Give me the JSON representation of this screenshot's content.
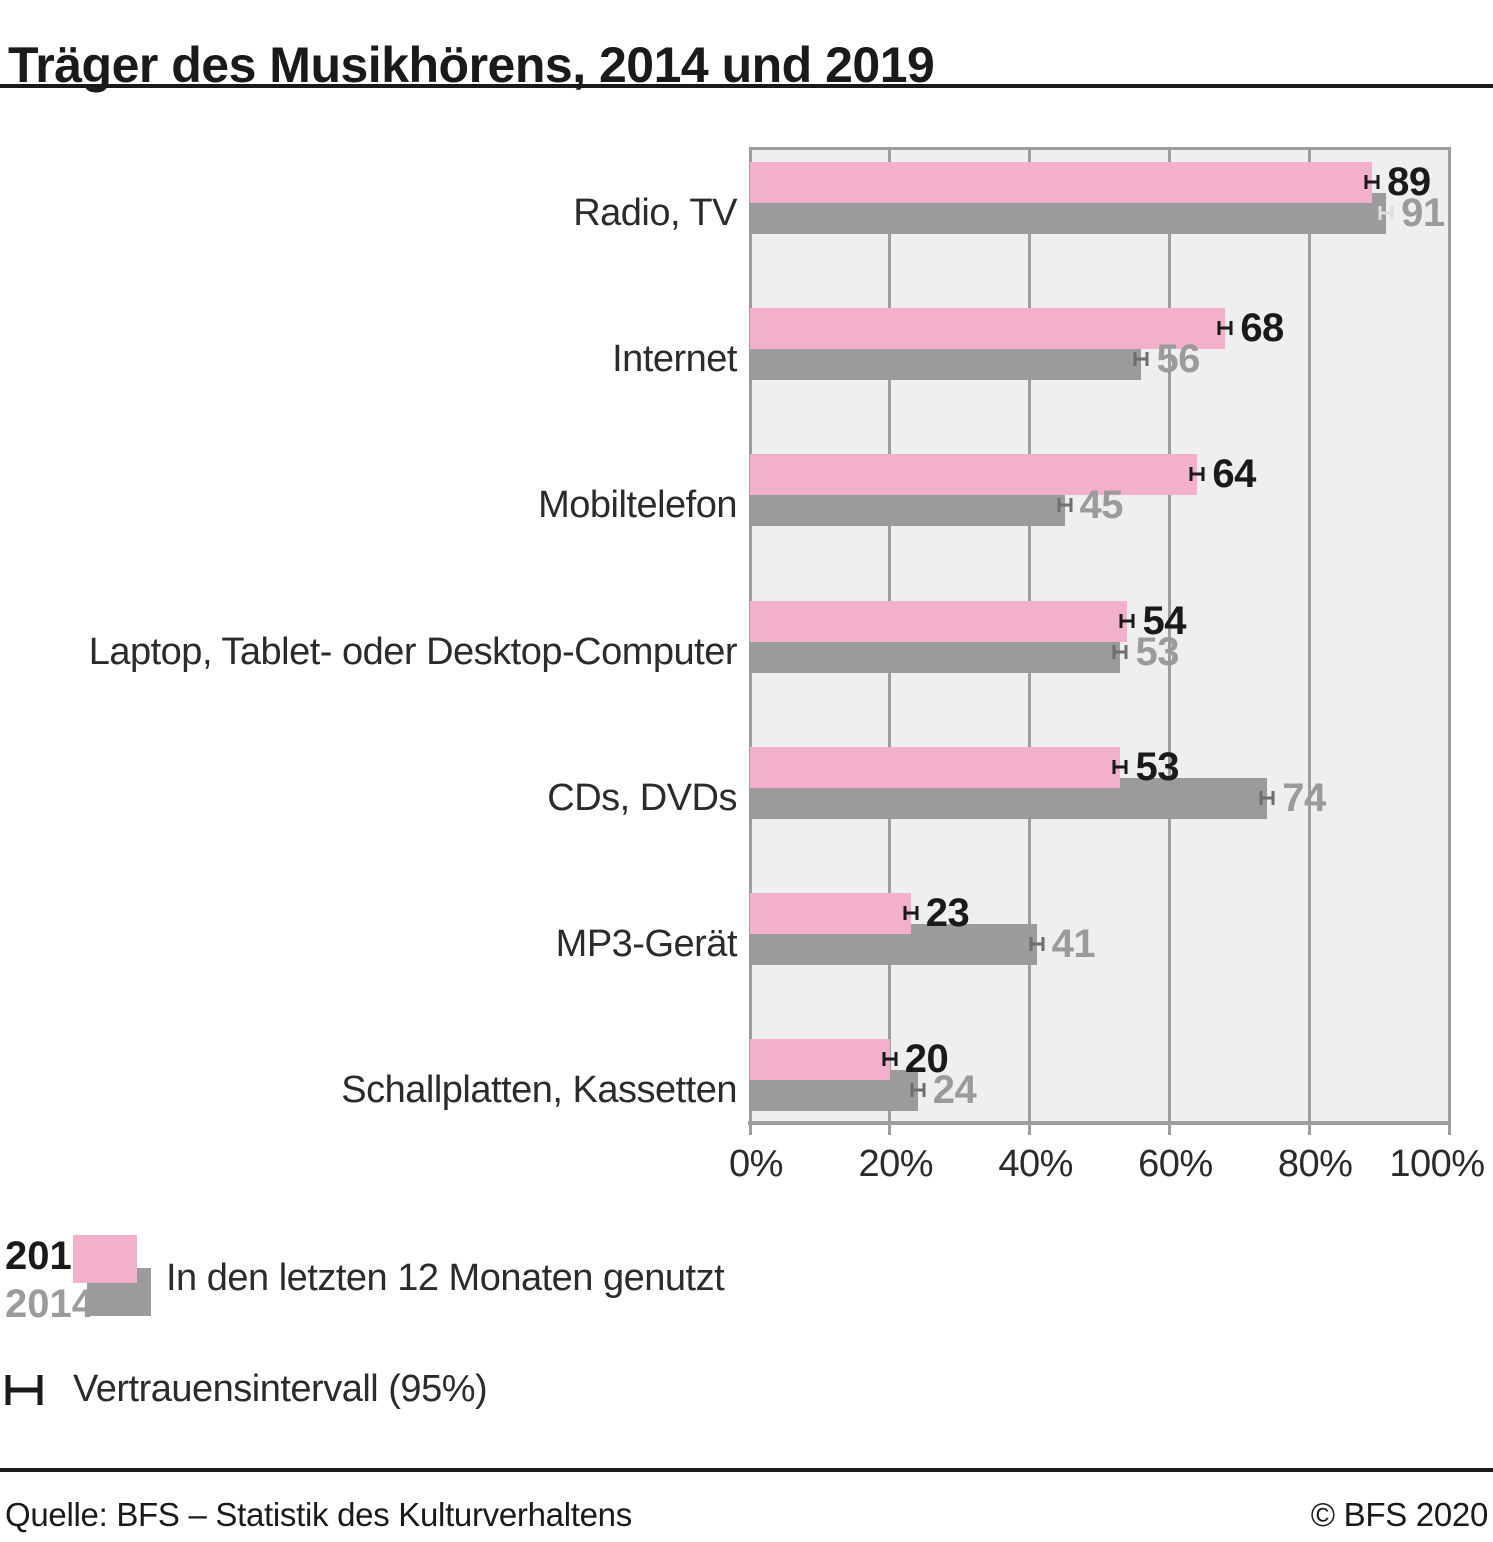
{
  "title": "Träger des Musikhörens, 2014 und 2019",
  "chart_data": {
    "type": "bar",
    "orientation": "horizontal",
    "title": "Träger des Musikhörens, 2014 und 2019",
    "categories": [
      "Radio, TV",
      "Internet",
      "Mobiltelefon",
      "Laptop, Tablet- oder Desktop-Computer",
      "CDs, DVDs",
      "MP3-Gerät",
      "Schallplatten, Kassetten"
    ],
    "series": [
      {
        "name": "2019",
        "values": [
          89,
          68,
          64,
          54,
          53,
          23,
          20
        ],
        "color": "#F2B0CC",
        "value_label_color": "#1A1A1A",
        "ci_marker_color": "#1A1A1A"
      },
      {
        "name": "2014",
        "values": [
          91,
          56,
          45,
          53,
          74,
          41,
          24
        ],
        "color": "#9B9B9B",
        "value_label_color": "#9B9B9B",
        "ci_marker_color": "#6E6E6E",
        "ci_marker_color_overrides": {
          "0": "#DEDEDE"
        }
      }
    ],
    "x_ticks": [
      0,
      20,
      40,
      60,
      80,
      100
    ],
    "x_tick_labels": [
      "0%",
      "20%",
      "40%",
      "60%",
      "80%",
      "100%"
    ],
    "xlim": [
      0,
      100
    ],
    "grid": true,
    "error_bars": "Vertrauensintervall (95%)",
    "legend_position": "bottom-left"
  },
  "legend": {
    "year2019": "2019",
    "year2014": "2014",
    "usage_label": "In den letzten 12 Monaten genutzt",
    "ci_label": "Vertrauensintervall (95%)"
  },
  "footer": {
    "source": "Quelle: BFS – Statistik des Kulturverhaltens",
    "copyright": "© BFS 2020"
  },
  "colors": {
    "bar_2019": "#F2B0CC",
    "bar_2014": "#9B9B9B",
    "plot_background": "#EFEFEF",
    "grid_line": "#9D9D9D",
    "text_dark": "#1A1A1A",
    "text_2014": "#9B9B9B"
  }
}
